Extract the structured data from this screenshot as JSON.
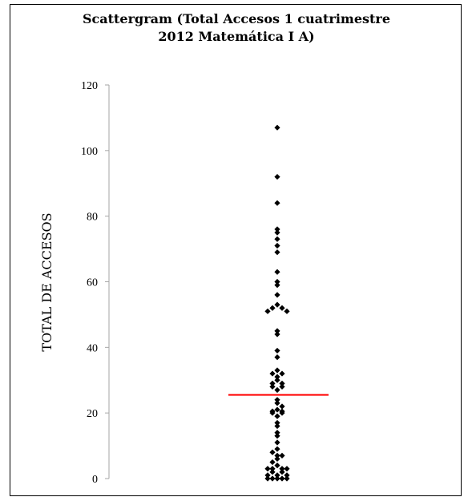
{
  "chart_data": {
    "type": "scatter",
    "title_lines": [
      "Scattergram (Total Accesos 1 cuatrimestre",
      "2012 Matemática I A)"
    ],
    "ylabel": "TOTAL DE ACCESOS",
    "xlabel": "",
    "ylim": [
      0,
      120
    ],
    "yticks": [
      "0",
      "20",
      "40",
      "60",
      "80",
      "100",
      "120"
    ],
    "grid": false,
    "marker_color": "#000000",
    "reference_line": {
      "y": 25.5,
      "color": "#ff0000"
    },
    "points": [
      {
        "x": 0,
        "y": 107
      },
      {
        "x": 0,
        "y": 92
      },
      {
        "x": 0,
        "y": 84
      },
      {
        "x": 0,
        "y": 76
      },
      {
        "x": 0,
        "y": 75
      },
      {
        "x": 0,
        "y": 73
      },
      {
        "x": 0,
        "y": 71
      },
      {
        "x": 0,
        "y": 69
      },
      {
        "x": 0,
        "y": 63
      },
      {
        "x": 0,
        "y": 60
      },
      {
        "x": 0,
        "y": 59
      },
      {
        "x": 0,
        "y": 56
      },
      {
        "x": 0,
        "y": 53
      },
      {
        "x": -1,
        "y": 52
      },
      {
        "x": 1,
        "y": 52
      },
      {
        "x": -2,
        "y": 51
      },
      {
        "x": 2,
        "y": 51
      },
      {
        "x": 0,
        "y": 45
      },
      {
        "x": 0,
        "y": 44
      },
      {
        "x": 0,
        "y": 39
      },
      {
        "x": 0,
        "y": 37
      },
      {
        "x": 0,
        "y": 33
      },
      {
        "x": -1,
        "y": 32
      },
      {
        "x": 1,
        "y": 32
      },
      {
        "x": 0,
        "y": 31
      },
      {
        "x": 0,
        "y": 30
      },
      {
        "x": -1,
        "y": 29
      },
      {
        "x": 1,
        "y": 29
      },
      {
        "x": -1,
        "y": 28
      },
      {
        "x": 1,
        "y": 28
      },
      {
        "x": 0,
        "y": 27
      },
      {
        "x": 0,
        "y": 24
      },
      {
        "x": 0,
        "y": 23
      },
      {
        "x": 1,
        "y": 22
      },
      {
        "x": 0,
        "y": 21
      },
      {
        "x": -1,
        "y": 20.5
      },
      {
        "x": 1,
        "y": 20.5
      },
      {
        "x": -1,
        "y": 20
      },
      {
        "x": 1,
        "y": 20
      },
      {
        "x": 0,
        "y": 19
      },
      {
        "x": 0,
        "y": 17
      },
      {
        "x": 0,
        "y": 16
      },
      {
        "x": 0,
        "y": 14
      },
      {
        "x": 0,
        "y": 13
      },
      {
        "x": 0,
        "y": 11
      },
      {
        "x": 0,
        "y": 9
      },
      {
        "x": -1,
        "y": 8
      },
      {
        "x": 0,
        "y": 7
      },
      {
        "x": 1,
        "y": 7
      },
      {
        "x": 0,
        "y": 6
      },
      {
        "x": -1,
        "y": 5
      },
      {
        "x": 0,
        "y": 4
      },
      {
        "x": -2,
        "y": 3
      },
      {
        "x": -1,
        "y": 3
      },
      {
        "x": 1,
        "y": 3
      },
      {
        "x": 2,
        "y": 3
      },
      {
        "x": -1,
        "y": 2
      },
      {
        "x": 1,
        "y": 2
      },
      {
        "x": -2,
        "y": 1
      },
      {
        "x": 0,
        "y": 1
      },
      {
        "x": 2,
        "y": 1
      },
      {
        "x": -2,
        "y": 0
      },
      {
        "x": -1,
        "y": 0
      },
      {
        "x": 0,
        "y": 0
      },
      {
        "x": 1,
        "y": 0
      },
      {
        "x": 2,
        "y": 0
      }
    ]
  }
}
